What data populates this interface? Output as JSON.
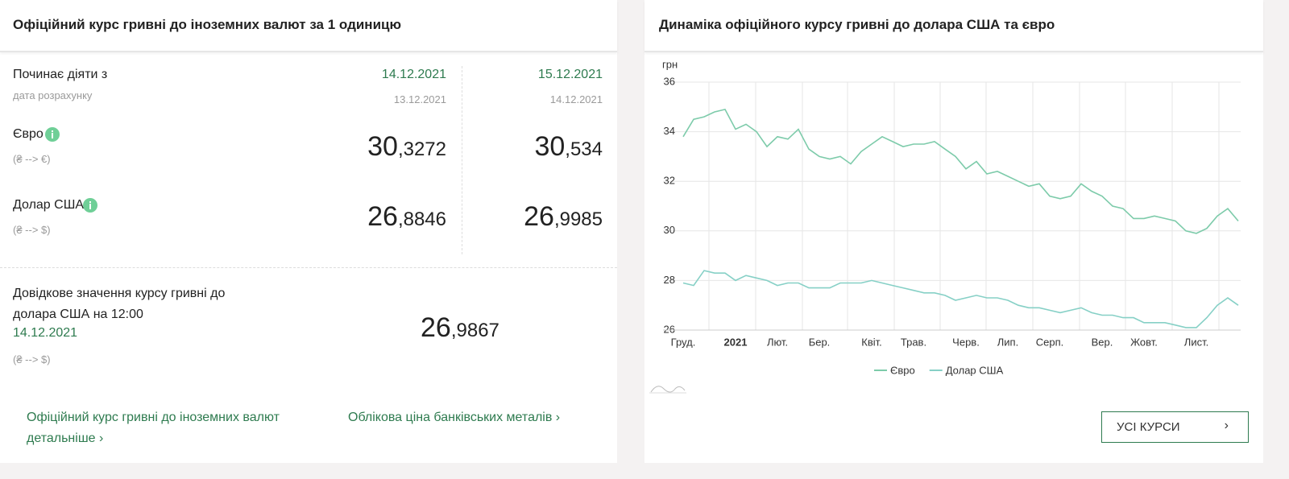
{
  "left_panel": {
    "title": "Офіційний курс гривні до іноземних валют за 1 одиницю",
    "start_label": "Починає діяти з",
    "calc_label": "дата розрахунку",
    "columns": [
      {
        "date": "14.12.2021",
        "calc_date": "13.12.2021",
        "eur": "30,3272",
        "usd": "26,8846"
      },
      {
        "date": "15.12.2021",
        "calc_date": "14.12.2021",
        "eur": "30,534",
        "usd": "26,9985"
      }
    ],
    "currencies": [
      {
        "name": "Євро",
        "note": "(₴ --> €)"
      },
      {
        "name": "Долар США",
        "note": "(₴ --> $)"
      }
    ],
    "reference": {
      "text": "Довідкове значення курсу гривні до долара США на 12:00",
      "date": "14.12.2021",
      "value": "26,9867",
      "note": "(₴ --> $)"
    },
    "links": [
      "Офіційний курс гривні до іноземних валют детальніше",
      "Облікова ціна банківських металів"
    ]
  },
  "chart_data": {
    "type": "line",
    "title": "Динаміка офіційного курсу гривні до долара США та євро",
    "y_label": "грн",
    "categories": [
      "Груд.",
      null,
      null,
      null,
      null,
      "2021",
      null,
      null,
      null,
      "Лют.",
      null,
      null,
      null,
      "Бер.",
      null,
      null,
      null,
      null,
      "Квіт.",
      null,
      null,
      null,
      "Трав.",
      null,
      null,
      null,
      null,
      "Черв.",
      null,
      null,
      null,
      "Лип.",
      null,
      null,
      null,
      "Серп.",
      null,
      null,
      null,
      null,
      "Вер.",
      null,
      null,
      null,
      "Жовт.",
      null,
      null,
      null,
      null,
      "Лист.",
      null,
      null,
      null,
      null
    ],
    "series": [
      {
        "name": "Євро",
        "color": "#7dcbaa",
        "values": [
          33.8,
          34.5,
          34.6,
          34.8,
          34.9,
          34.1,
          34.3,
          34.0,
          33.4,
          33.8,
          33.7,
          34.1,
          33.3,
          33.0,
          32.9,
          33.0,
          32.7,
          33.2,
          33.5,
          33.8,
          33.6,
          33.4,
          33.5,
          33.5,
          33.6,
          33.3,
          33.0,
          32.5,
          32.8,
          32.3,
          32.4,
          32.2,
          32.0,
          31.8,
          31.9,
          31.4,
          31.3,
          31.4,
          31.9,
          31.6,
          31.4,
          31.0,
          30.9,
          30.5,
          30.5,
          30.6,
          30.5,
          30.4,
          30.0,
          29.9,
          30.1,
          30.6,
          30.9,
          30.4
        ]
      },
      {
        "name": "Долар США",
        "color": "#86d0c6",
        "values": [
          27.9,
          27.8,
          28.4,
          28.3,
          28.3,
          28.0,
          28.2,
          28.1,
          28.0,
          27.8,
          27.9,
          27.9,
          27.7,
          27.7,
          27.7,
          27.9,
          27.9,
          27.9,
          28.0,
          27.9,
          27.8,
          27.7,
          27.6,
          27.5,
          27.5,
          27.4,
          27.2,
          27.3,
          27.4,
          27.3,
          27.3,
          27.2,
          27.0,
          26.9,
          26.9,
          26.8,
          26.7,
          26.8,
          26.9,
          26.7,
          26.6,
          26.6,
          26.5,
          26.5,
          26.3,
          26.3,
          26.3,
          26.2,
          26.1,
          26.1,
          26.5,
          27.0,
          27.3,
          27.0
        ]
      }
    ],
    "ylim": [
      26,
      36
    ],
    "yticks": [
      26,
      28,
      30,
      32,
      34,
      36
    ],
    "grid": true,
    "legend": "bottom"
  },
  "button": {
    "label": "УСІ КУРСИ"
  }
}
